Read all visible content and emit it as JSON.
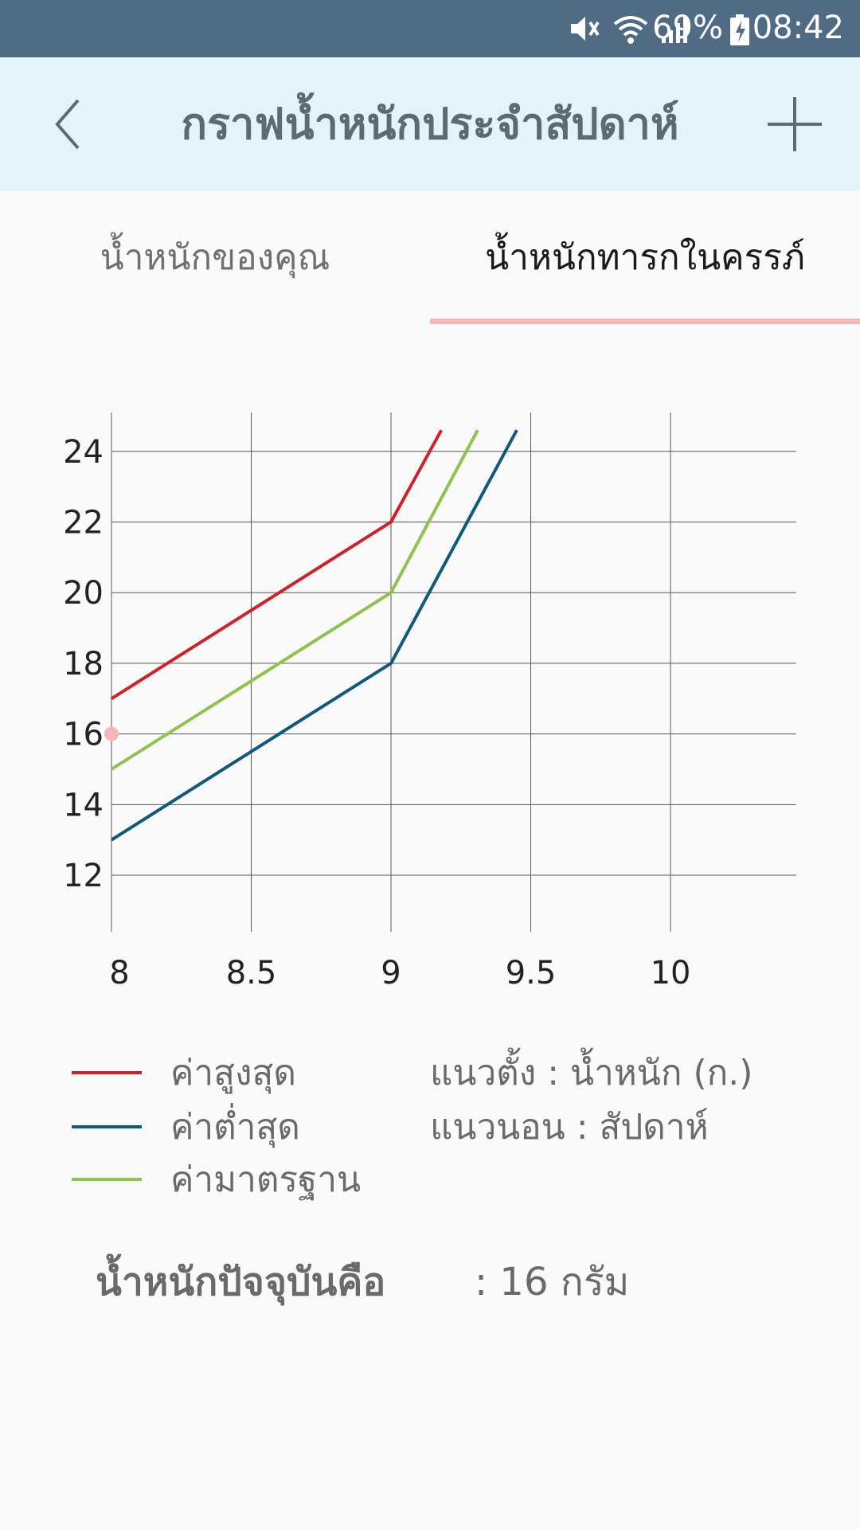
{
  "status_bar": {
    "battery": "69%",
    "time": "08:42",
    "icons": [
      "mute-icon",
      "wifi-icon",
      "signal-icon",
      "battery-charging-icon"
    ]
  },
  "app_bar": {
    "title": "กราฟน้ำหนักประจำสัปดาห์",
    "back_icon": "chevron-left-icon",
    "add_icon": "plus-icon"
  },
  "tabs": [
    {
      "label": "น้ำหนักของคุณ",
      "selected": false
    },
    {
      "label": "น้ำหนักทารกในครรภ์",
      "selected": true
    }
  ],
  "colors": {
    "max": "#d32027",
    "min": "#0f5a7a",
    "standard": "#8ec34e",
    "current_point": "#f6b6b6",
    "tab_indicator": "#f5b8b8"
  },
  "chart_data": {
    "type": "line",
    "x_ticks": [
      "8",
      "8.5",
      "9",
      "9.5",
      "10"
    ],
    "y_ticks": [
      "12",
      "14",
      "16",
      "18",
      "20",
      "22",
      "24"
    ],
    "xlim": [
      8,
      10.45
    ],
    "ylim": [
      10.4,
      25.1
    ],
    "grid": true,
    "series": [
      {
        "name": "ค่าสูงสุด",
        "color": "#d32027",
        "x": [
          8,
          9,
          9.18
        ],
        "y": [
          17,
          22,
          24.6
        ]
      },
      {
        "name": "ค่าต่ำสุด",
        "color": "#0f5a7a",
        "x": [
          8,
          9,
          9.45
        ],
        "y": [
          13,
          18,
          24.6
        ]
      },
      {
        "name": "ค่ามาตรฐาน",
        "color": "#8ec34e",
        "x": [
          8,
          9,
          9.31
        ],
        "y": [
          15,
          20,
          24.6
        ]
      }
    ],
    "current_point": {
      "x": 8,
      "y": 16
    }
  },
  "legend": {
    "items": [
      {
        "label": "ค่าสูงสุด",
        "color": "#d32027"
      },
      {
        "label": "ค่าต่ำสุด",
        "color": "#0f5a7a"
      },
      {
        "label": "ค่ามาตรฐาน",
        "color": "#8ec34e"
      }
    ],
    "vertical_axis": "แนวตั้ง : น้ำหนัก (ก.)",
    "horizontal_axis": "แนวนอน : สัปดาห์"
  },
  "current_weight": {
    "label": "น้ำหนักปัจจุบันคือ",
    "value": ": 16  กรัม"
  }
}
